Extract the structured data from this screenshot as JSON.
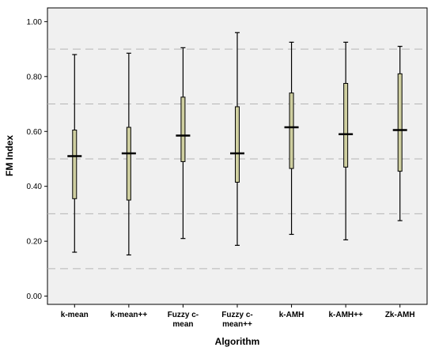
{
  "chart_data": {
    "type": "boxplot",
    "xlabel": "Algorithm",
    "ylabel": "FM Index",
    "ylim": [
      -0.03,
      1.05
    ],
    "yticks": [
      0.0,
      0.2,
      0.4,
      0.6,
      0.8,
      1.0
    ],
    "ytick_labels": [
      "0.00",
      "0.20",
      "0.40",
      "0.60",
      "0.80",
      "1.00"
    ],
    "gridlines": [
      0.1,
      0.3,
      0.5,
      0.7,
      0.9
    ],
    "grid": "horizontal dashed",
    "colors": {
      "plot_background": "#f0f0f0",
      "box_fill": "#cfcfa0",
      "box_stroke": "#000000",
      "gridline": "#b5b5b5"
    },
    "categories": [
      {
        "label_lines": [
          "k-mean"
        ],
        "whisker_low": 0.16,
        "q1": 0.355,
        "median": 0.51,
        "q3": 0.605,
        "whisker_high": 0.88
      },
      {
        "label_lines": [
          "k-mean++"
        ],
        "whisker_low": 0.15,
        "q1": 0.35,
        "median": 0.52,
        "q3": 0.615,
        "whisker_high": 0.885
      },
      {
        "label_lines": [
          "Fuzzy c-",
          "mean"
        ],
        "whisker_low": 0.21,
        "q1": 0.49,
        "median": 0.585,
        "q3": 0.725,
        "whisker_high": 0.905
      },
      {
        "label_lines": [
          "Fuzzy c-",
          "mean++"
        ],
        "whisker_low": 0.185,
        "q1": 0.415,
        "median": 0.52,
        "q3": 0.69,
        "whisker_high": 0.96
      },
      {
        "label_lines": [
          "k-AMH"
        ],
        "whisker_low": 0.225,
        "q1": 0.465,
        "median": 0.615,
        "q3": 0.74,
        "whisker_high": 0.925
      },
      {
        "label_lines": [
          "k-AMH++"
        ],
        "whisker_low": 0.205,
        "q1": 0.47,
        "median": 0.59,
        "q3": 0.775,
        "whisker_high": 0.925
      },
      {
        "label_lines": [
          "Zk-AMH"
        ],
        "whisker_low": 0.275,
        "q1": 0.455,
        "median": 0.605,
        "q3": 0.81,
        "whisker_high": 0.91
      }
    ]
  }
}
